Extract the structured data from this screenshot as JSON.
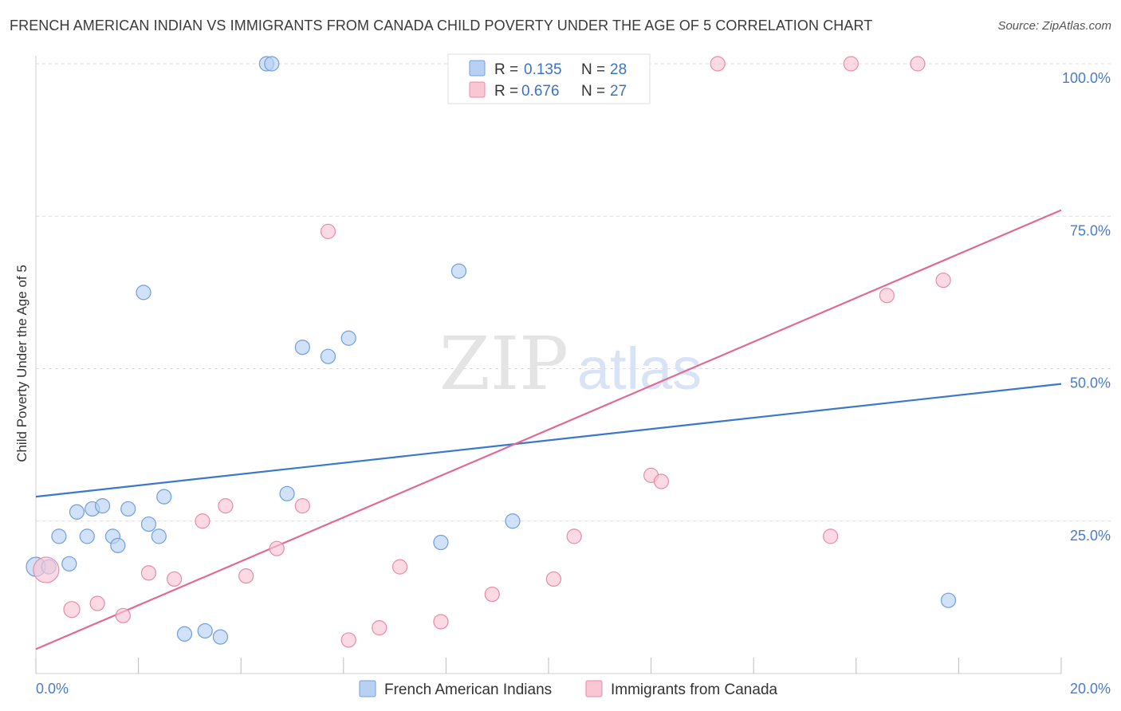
{
  "title": "FRENCH AMERICAN INDIAN VS IMMIGRANTS FROM CANADA CHILD POVERTY UNDER THE AGE OF 5 CORRELATION CHART",
  "source": "Source: ZipAtlas.com",
  "watermark": {
    "zip": "ZIP",
    "atlas": "atlas"
  },
  "legend": {
    "r_label": "R =",
    "n_label": "N =",
    "series": [
      {
        "name": "French American Indians",
        "r": "0.135",
        "n": "28"
      },
      {
        "name": "Immigrants from Canada",
        "r": "0.676",
        "n": "27"
      }
    ]
  },
  "colors": {
    "blue_fill": "#b8d1f2",
    "blue_stroke": "#6f9fdc",
    "blue_line": "#3a78cc",
    "pink_fill": "#f9c6d4",
    "pink_stroke": "#e88aa8",
    "pink_line": "#e06a96",
    "grid": "#dcdcdc",
    "tick_label": "#4a7cc7"
  },
  "chart_data": {
    "type": "scatter",
    "title": "FRENCH AMERICAN INDIAN VS IMMIGRANTS FROM CANADA CHILD POVERTY UNDER THE AGE OF 5 CORRELATION CHART",
    "xlabel": "",
    "ylabel": "Child Poverty Under the Age of 5",
    "xlim": [
      0,
      20
    ],
    "ylim": [
      0,
      100
    ],
    "x_tick_labels": [
      "0.0%",
      "20.0%"
    ],
    "y_ticks": [
      25,
      50,
      75,
      100
    ],
    "y_tick_labels": [
      "25.0%",
      "50.0%",
      "75.0%",
      "100.0%"
    ],
    "grid": true,
    "legend_position": "top-center",
    "series": [
      {
        "name": "French American Indians",
        "color": "#6f9fdc",
        "trend": {
          "x": [
            0,
            20
          ],
          "y": [
            29,
            47.5
          ]
        },
        "points": [
          {
            "x": 0.0,
            "y": 17.5,
            "s": 12
          },
          {
            "x": 0.25,
            "y": 17.5,
            "s": 9
          },
          {
            "x": 0.65,
            "y": 18.0,
            "s": 9
          },
          {
            "x": 0.45,
            "y": 22.5,
            "s": 9
          },
          {
            "x": 0.8,
            "y": 26.5,
            "s": 9
          },
          {
            "x": 1.0,
            "y": 22.5,
            "s": 9
          },
          {
            "x": 1.1,
            "y": 27.0,
            "s": 9
          },
          {
            "x": 1.3,
            "y": 27.5,
            "s": 9
          },
          {
            "x": 1.5,
            "y": 22.5,
            "s": 9
          },
          {
            "x": 1.6,
            "y": 21.0,
            "s": 9
          },
          {
            "x": 1.8,
            "y": 27.0,
            "s": 9
          },
          {
            "x": 2.1,
            "y": 62.5,
            "s": 9
          },
          {
            "x": 2.2,
            "y": 24.5,
            "s": 9
          },
          {
            "x": 2.4,
            "y": 22.5,
            "s": 9
          },
          {
            "x": 2.5,
            "y": 29.0,
            "s": 9
          },
          {
            "x": 2.9,
            "y": 6.5,
            "s": 9
          },
          {
            "x": 3.3,
            "y": 7.0,
            "s": 9
          },
          {
            "x": 3.6,
            "y": 6.0,
            "s": 9
          },
          {
            "x": 4.5,
            "y": 100.0,
            "s": 9
          },
          {
            "x": 4.6,
            "y": 100.0,
            "s": 9
          },
          {
            "x": 4.9,
            "y": 29.5,
            "s": 9
          },
          {
            "x": 5.2,
            "y": 53.5,
            "s": 9
          },
          {
            "x": 5.7,
            "y": 52.0,
            "s": 9
          },
          {
            "x": 6.1,
            "y": 55.0,
            "s": 9
          },
          {
            "x": 7.9,
            "y": 21.5,
            "s": 9
          },
          {
            "x": 8.25,
            "y": 66.0,
            "s": 9
          },
          {
            "x": 9.3,
            "y": 25.0,
            "s": 9
          },
          {
            "x": 17.8,
            "y": 12.0,
            "s": 9
          }
        ]
      },
      {
        "name": "Immigrants from Canada",
        "color": "#e88aa8",
        "trend": {
          "x": [
            0,
            20
          ],
          "y": [
            4,
            76
          ]
        },
        "points": [
          {
            "x": 0.2,
            "y": 17.0,
            "s": 16
          },
          {
            "x": 0.7,
            "y": 10.5,
            "s": 10
          },
          {
            "x": 1.2,
            "y": 11.5,
            "s": 9
          },
          {
            "x": 1.7,
            "y": 9.5,
            "s": 9
          },
          {
            "x": 2.2,
            "y": 16.5,
            "s": 9
          },
          {
            "x": 2.7,
            "y": 15.5,
            "s": 9
          },
          {
            "x": 3.25,
            "y": 25.0,
            "s": 9
          },
          {
            "x": 3.7,
            "y": 27.5,
            "s": 9
          },
          {
            "x": 4.1,
            "y": 16.0,
            "s": 9
          },
          {
            "x": 4.7,
            "y": 20.5,
            "s": 9
          },
          {
            "x": 5.2,
            "y": 27.5,
            "s": 9
          },
          {
            "x": 5.7,
            "y": 72.5,
            "s": 9
          },
          {
            "x": 6.1,
            "y": 5.5,
            "s": 9
          },
          {
            "x": 6.7,
            "y": 7.5,
            "s": 9
          },
          {
            "x": 7.1,
            "y": 17.5,
            "s": 9
          },
          {
            "x": 7.9,
            "y": 8.5,
            "s": 9
          },
          {
            "x": 8.9,
            "y": 13.0,
            "s": 9
          },
          {
            "x": 10.1,
            "y": 15.5,
            "s": 9
          },
          {
            "x": 10.5,
            "y": 22.5,
            "s": 9
          },
          {
            "x": 12.0,
            "y": 32.5,
            "s": 9
          },
          {
            "x": 12.2,
            "y": 31.5,
            "s": 9
          },
          {
            "x": 13.3,
            "y": 100.0,
            "s": 9
          },
          {
            "x": 15.5,
            "y": 22.5,
            "s": 9
          },
          {
            "x": 15.9,
            "y": 100.0,
            "s": 9
          },
          {
            "x": 16.6,
            "y": 62.0,
            "s": 9
          },
          {
            "x": 17.2,
            "y": 100.0,
            "s": 9
          },
          {
            "x": 17.7,
            "y": 64.5,
            "s": 9
          }
        ]
      }
    ]
  }
}
